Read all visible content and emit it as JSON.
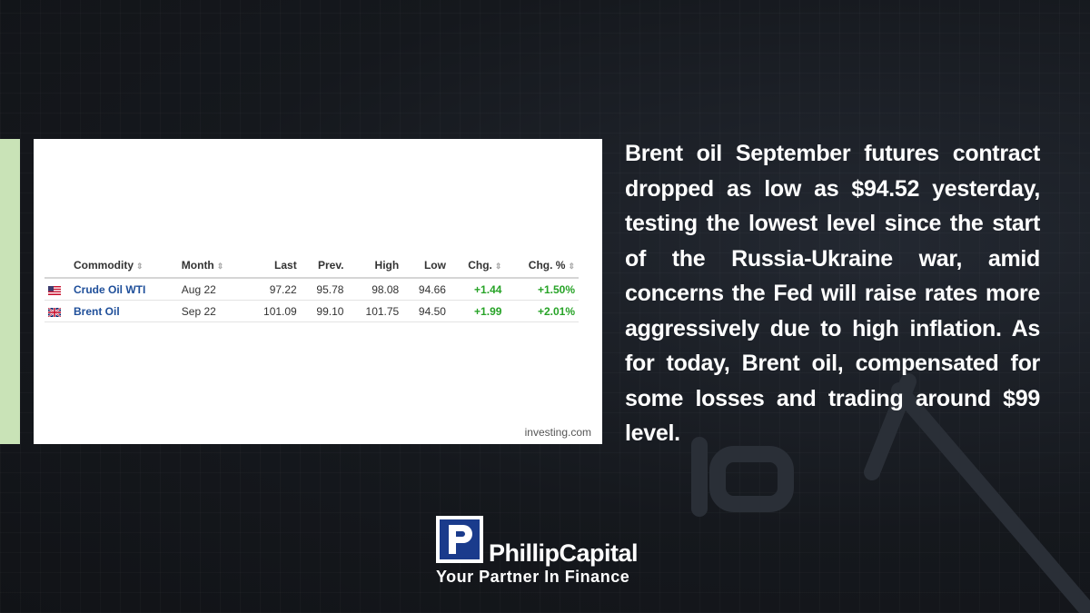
{
  "table": {
    "headers": {
      "commodity": "Commodity",
      "month": "Month",
      "last": "Last",
      "prev": "Prev.",
      "high": "High",
      "low": "Low",
      "chg": "Chg.",
      "chg_pct": "Chg. %"
    },
    "rows": [
      {
        "flag": "us-flag-icon",
        "name": "Crude Oil WTI",
        "month": "Aug 22",
        "last": "97.22",
        "prev": "95.78",
        "high": "98.08",
        "low": "94.66",
        "chg": "+1.44",
        "chg_pct": "+1.50%"
      },
      {
        "flag": "uk-flag-icon",
        "name": "Brent Oil",
        "month": "Sep 22",
        "last": "101.09",
        "prev": "99.10",
        "high": "101.75",
        "low": "94.50",
        "chg": "+1.99",
        "chg_pct": "+2.01%"
      }
    ],
    "source": "investing.com"
  },
  "article": {
    "text": "Brent oil September futures contract dropped as low as $94.52 yesterday, testing the lowest level since the start of the Russia-Ukraine war, amid concerns the Fed will raise rates more aggressively due to high inflation. As for today, Brent oil, compensated for some losses and trading around $99 level."
  },
  "logo": {
    "brand": "PhillipCapital",
    "tagline": "Your Partner In Finance"
  },
  "colors": {
    "accent_green": "#c9e3b7",
    "positive": "#27a327",
    "link_blue": "#1f4f9a",
    "background": "#14171c"
  }
}
